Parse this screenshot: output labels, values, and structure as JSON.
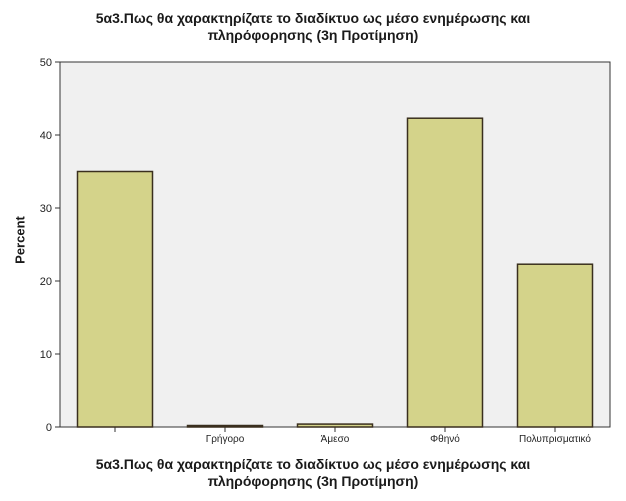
{
  "chart_data": {
    "type": "bar",
    "title": [
      "5α3.Πως θα χαρακτηρίζατε το διαδίκτυο ως μέσο ενημέρωσης και",
      "πληρόφορησης (3η Προτίμηση)"
    ],
    "xlabel": [
      "5α3.Πως θα χαρακτηρίζατε το διαδίκτυο ως μέσο ενημέρωσης και",
      "πληρόφορησης (3η Προτίμηση)"
    ],
    "ylabel": "Percent",
    "categories": [
      "",
      "Γρήγορο",
      "Άμεσο",
      "Φθηνό",
      "Πολυπρισματικό"
    ],
    "values": [
      35.0,
      0.2,
      0.4,
      42.3,
      22.3
    ],
    "ylim": [
      0,
      50
    ],
    "yticks": [
      0,
      10,
      20,
      30,
      40,
      50
    ],
    "grid": false,
    "colors": {
      "bar_fill": "#d4d38a",
      "bar_stroke": "#3a2f1e",
      "plot_bg": "#f0f0f0",
      "axis": "#333333"
    }
  }
}
